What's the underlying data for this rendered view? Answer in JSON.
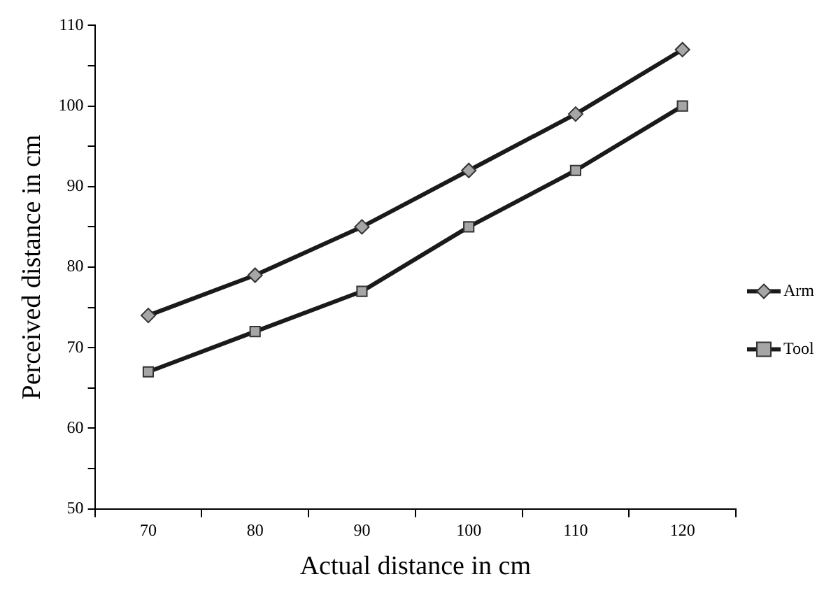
{
  "chart_data": {
    "type": "line",
    "xlabel": "Actual distance in cm",
    "ylabel": "Perceived distance in cm",
    "categories": [
      "70",
      "80",
      "90",
      "100",
      "110",
      "120"
    ],
    "series": [
      {
        "name": "Arm",
        "color": "#1a1a1a",
        "marker": "diamond",
        "values": [
          74,
          79,
          85,
          92,
          99,
          107
        ]
      },
      {
        "name": "Tool",
        "color": "#1a1a1a",
        "marker": "square",
        "values": [
          67,
          72,
          77,
          85,
          92,
          100
        ]
      }
    ],
    "ylim": [
      50,
      110
    ],
    "yticks": [
      50,
      {
        "value": 55,
        "label": null
      },
      60,
      {
        "value": 65,
        "label": null
      },
      70,
      {
        "value": 75,
        "label": null
      },
      80,
      {
        "value": 85,
        "label": null
      },
      90,
      {
        "value": 95,
        "label": null
      },
      100,
      {
        "value": 105,
        "label": null
      },
      110
    ],
    "grid": false,
    "legend": "right",
    "line_style": "solid"
  }
}
